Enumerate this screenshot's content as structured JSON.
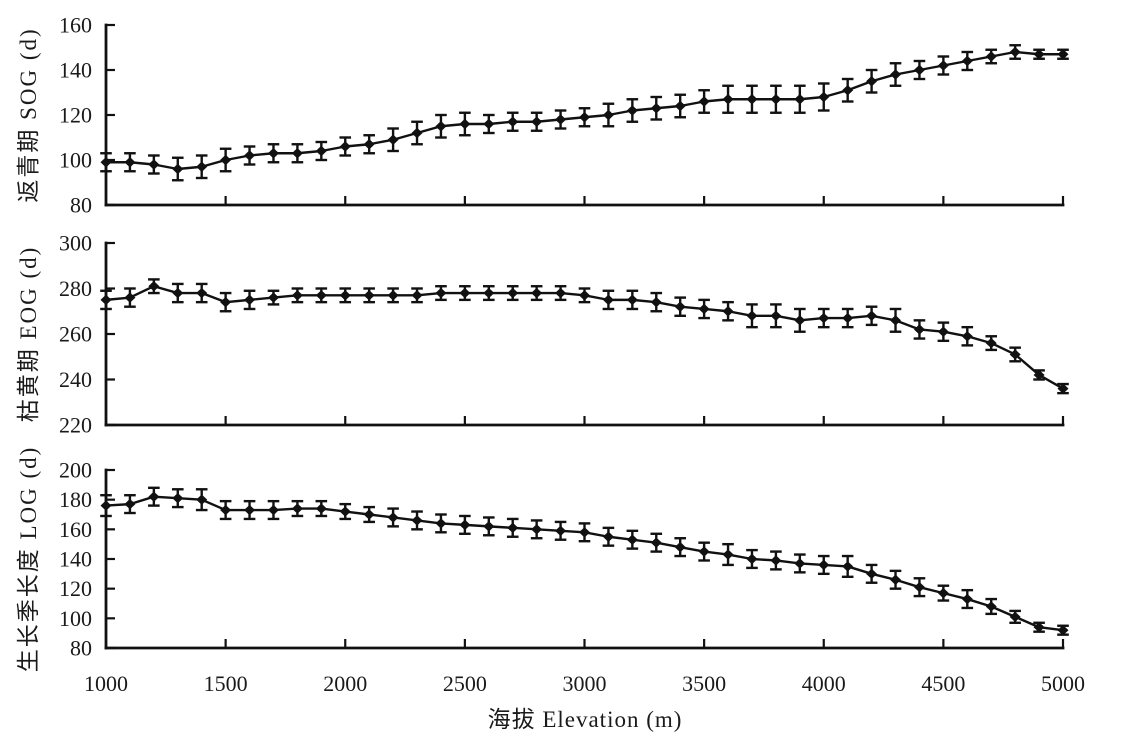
{
  "figure": {
    "background": "#ffffff",
    "ink_color": "#111111"
  },
  "chart_data": {
    "type": "line",
    "title": "",
    "xlabel": "海拔 Elevation (m)",
    "x": [
      1000,
      1100,
      1200,
      1300,
      1400,
      1500,
      1600,
      1700,
      1800,
      1900,
      2000,
      2100,
      2200,
      2300,
      2400,
      2500,
      2600,
      2700,
      2800,
      2900,
      3000,
      3100,
      3200,
      3300,
      3400,
      3500,
      3600,
      3700,
      3800,
      3900,
      4000,
      4100,
      4200,
      4300,
      4400,
      4500,
      4600,
      4700,
      4800,
      4900,
      5000
    ],
    "xticks": [
      1000,
      1500,
      2000,
      2500,
      3000,
      3500,
      4000,
      4500,
      5000
    ],
    "xlim": [
      1000,
      5000
    ],
    "grid": false,
    "legend_position": "none",
    "marker": "diamond",
    "error_bars": true,
    "panels": [
      {
        "ylabel": "返青期 SOG (d)",
        "ylim": [
          80,
          160
        ],
        "yticks": [
          80,
          100,
          120,
          140,
          160
        ],
        "series": {
          "name": "SOG",
          "values": [
            99,
            99,
            98,
            96,
            97,
            100,
            102,
            103,
            103,
            104,
            106,
            107,
            109,
            112,
            115,
            116,
            116,
            117,
            117,
            118,
            119,
            120,
            122,
            123,
            124,
            126,
            127,
            127,
            127,
            127,
            128,
            131,
            135,
            138,
            140,
            142,
            144,
            146,
            148,
            147,
            147
          ],
          "errors": [
            4,
            4,
            4,
            5,
            5,
            5,
            4,
            4,
            4,
            4,
            4,
            4,
            5,
            5,
            5,
            5,
            4,
            4,
            4,
            4,
            4,
            5,
            5,
            5,
            5,
            5,
            6,
            6,
            6,
            6,
            6,
            5,
            5,
            5,
            4,
            4,
            4,
            3,
            3,
            2,
            2
          ]
        }
      },
      {
        "ylabel": "枯黄期 EOG (d)",
        "ylim": [
          220,
          300
        ],
        "yticks": [
          220,
          240,
          260,
          280,
          300
        ],
        "series": {
          "name": "EOG",
          "values": [
            275,
            276,
            281,
            278,
            278,
            274,
            275,
            276,
            277,
            277,
            277,
            277,
            277,
            277,
            278,
            278,
            278,
            278,
            278,
            278,
            277,
            275,
            275,
            274,
            272,
            271,
            270,
            268,
            268,
            266,
            267,
            267,
            268,
            266,
            262,
            261,
            259,
            256,
            251,
            242,
            236
          ],
          "errors": [
            4,
            4,
            3,
            4,
            4,
            4,
            4,
            3,
            3,
            3,
            3,
            3,
            3,
            3,
            3,
            3,
            3,
            3,
            3,
            3,
            3,
            4,
            4,
            4,
            4,
            4,
            4,
            5,
            5,
            5,
            4,
            4,
            4,
            5,
            4,
            4,
            4,
            3,
            3,
            2,
            2
          ]
        }
      },
      {
        "ylabel": "生长季长度 LOG (d)",
        "ylim": [
          80,
          200
        ],
        "yticks": [
          80,
          100,
          120,
          140,
          160,
          180,
          200
        ],
        "series": {
          "name": "LOG",
          "values": [
            176,
            177,
            182,
            181,
            180,
            173,
            173,
            173,
            174,
            174,
            172,
            170,
            168,
            166,
            164,
            163,
            162,
            161,
            160,
            159,
            158,
            155,
            153,
            151,
            148,
            145,
            143,
            140,
            139,
            137,
            136,
            135,
            130,
            126,
            121,
            117,
            113,
            108,
            101,
            94,
            92
          ],
          "errors": [
            7,
            6,
            6,
            6,
            7,
            6,
            6,
            6,
            5,
            5,
            5,
            5,
            6,
            6,
            6,
            6,
            6,
            6,
            6,
            6,
            6,
            6,
            6,
            6,
            6,
            6,
            7,
            6,
            6,
            6,
            6,
            7,
            6,
            6,
            6,
            5,
            6,
            5,
            4,
            3,
            3
          ]
        }
      }
    ]
  }
}
